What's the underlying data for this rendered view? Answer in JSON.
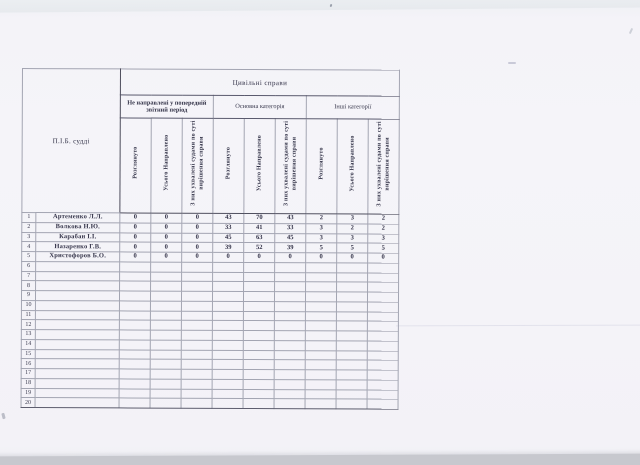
{
  "colors": {
    "paper": "#f5f4f9",
    "border_dark": "#4d4d5c",
    "border_light": "#a3a5b2",
    "scanner_edge": "#c7c8ce",
    "ink": "#343449"
  },
  "table": {
    "corner_header": "П.І.Б. судді",
    "main_header": "Цивільні справи",
    "groups": [
      {
        "label": "Не направлені у попередній звітний період"
      },
      {
        "label": "Основна категорія"
      },
      {
        "label": "Інші категорії"
      }
    ],
    "sub_headers": [
      "Розглянуто",
      "Усього Направлено",
      "З них ухвалені судами по суті вирішення справи"
    ],
    "rows": [
      {
        "num": "1",
        "name": "Артеменко Л.Л.",
        "values": [
          "0",
          "0",
          "0",
          "43",
          "70",
          "43",
          "2",
          "3",
          "2"
        ]
      },
      {
        "num": "2",
        "name": "Волкова Н.Ю.",
        "values": [
          "0",
          "0",
          "0",
          "33",
          "41",
          "33",
          "3",
          "2",
          "2"
        ]
      },
      {
        "num": "3",
        "name": "Карабан І.І.",
        "values": [
          "0",
          "0",
          "0",
          "45",
          "63",
          "45",
          "3",
          "3",
          "3"
        ]
      },
      {
        "num": "4",
        "name": "Назаренко Г.В.",
        "values": [
          "0",
          "0",
          "0",
          "39",
          "52",
          "39",
          "5",
          "5",
          "5"
        ]
      },
      {
        "num": "5",
        "name": "Христофоров Б.О.",
        "values": [
          "0",
          "0",
          "0",
          "0",
          "0",
          "0",
          "0",
          "0",
          "0"
        ]
      },
      {
        "num": "6",
        "name": "",
        "values": [
          "",
          "",
          "",
          "",
          "",
          "",
          "",
          "",
          ""
        ]
      },
      {
        "num": "7",
        "name": "",
        "values": [
          "",
          "",
          "",
          "",
          "",
          "",
          "",
          "",
          ""
        ]
      },
      {
        "num": "8",
        "name": "",
        "values": [
          "",
          "",
          "",
          "",
          "",
          "",
          "",
          "",
          ""
        ]
      },
      {
        "num": "9",
        "name": "",
        "values": [
          "",
          "",
          "",
          "",
          "",
          "",
          "",
          "",
          ""
        ]
      },
      {
        "num": "10",
        "name": "",
        "values": [
          "",
          "",
          "",
          "",
          "",
          "",
          "",
          "",
          ""
        ]
      },
      {
        "num": "11",
        "name": "",
        "values": [
          "",
          "",
          "",
          "",
          "",
          "",
          "",
          "",
          ""
        ]
      },
      {
        "num": "12",
        "name": "",
        "values": [
          "",
          "",
          "",
          "",
          "",
          "",
          "",
          "",
          ""
        ]
      },
      {
        "num": "13",
        "name": "",
        "values": [
          "",
          "",
          "",
          "",
          "",
          "",
          "",
          "",
          ""
        ]
      },
      {
        "num": "14",
        "name": "",
        "values": [
          "",
          "",
          "",
          "",
          "",
          "",
          "",
          "",
          ""
        ]
      },
      {
        "num": "15",
        "name": "",
        "values": [
          "",
          "",
          "",
          "",
          "",
          "",
          "",
          "",
          ""
        ]
      },
      {
        "num": "16",
        "name": "",
        "values": [
          "",
          "",
          "",
          "",
          "",
          "",
          "",
          "",
          ""
        ]
      },
      {
        "num": "17",
        "name": "",
        "values": [
          "",
          "",
          "",
          "",
          "",
          "",
          "",
          "",
          ""
        ]
      },
      {
        "num": "18",
        "name": "",
        "values": [
          "",
          "",
          "",
          "",
          "",
          "",
          "",
          "",
          ""
        ]
      },
      {
        "num": "19",
        "name": "",
        "values": [
          "",
          "",
          "",
          "",
          "",
          "",
          "",
          "",
          ""
        ]
      },
      {
        "num": "20",
        "name": "",
        "values": [
          "",
          "",
          "",
          "",
          "",
          "",
          "",
          "",
          ""
        ]
      }
    ]
  }
}
